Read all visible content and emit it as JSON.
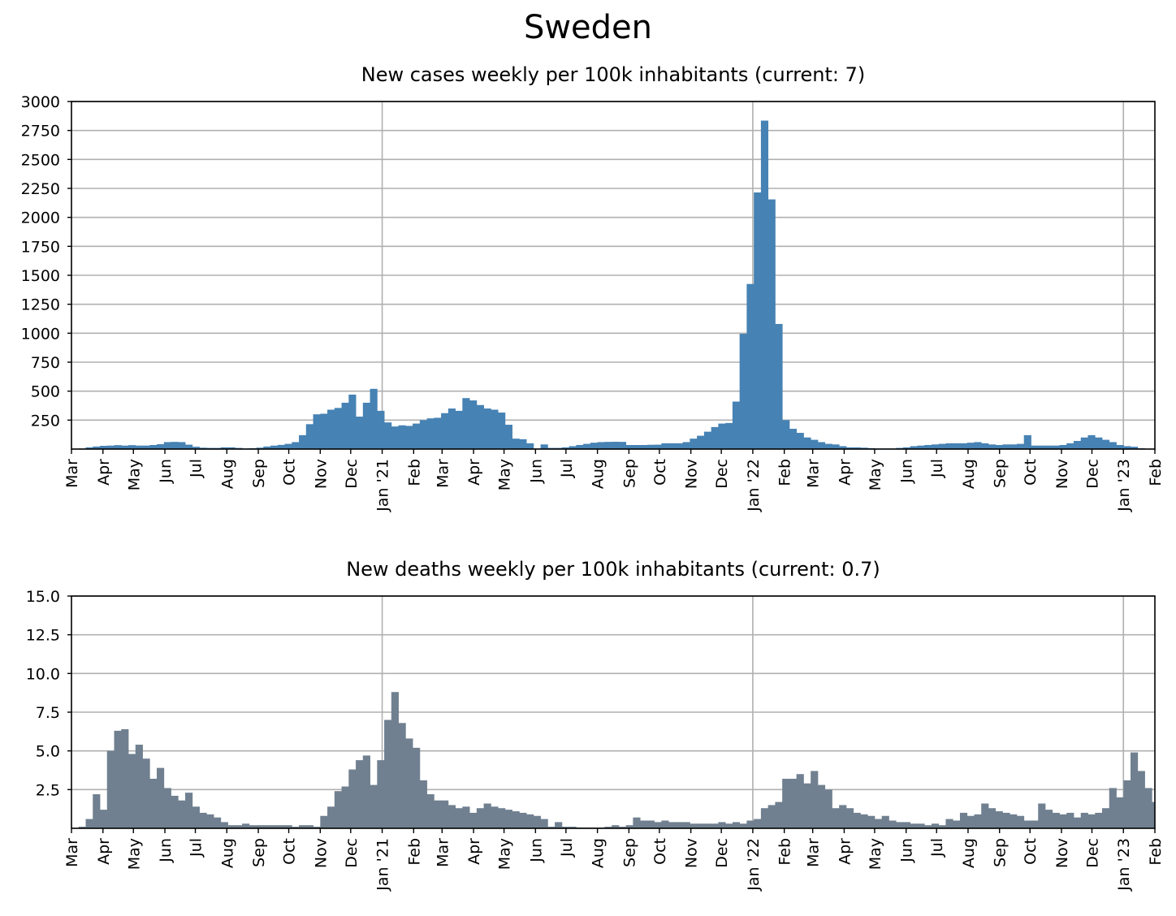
{
  "suptitle": "Sweden",
  "chart_data": [
    {
      "type": "bar",
      "title": "New cases weekly per 100k inhabitants (current: 7)",
      "xlabel": "",
      "ylabel": "",
      "ylim": [
        0,
        3000
      ],
      "yticks": [
        250,
        500,
        750,
        1000,
        1250,
        1500,
        1750,
        2000,
        2250,
        2500,
        2750,
        3000
      ],
      "xlim": [
        "2020-03-01",
        "2023-02-01"
      ],
      "grid": true,
      "color": "#4682b4",
      "major_gridlines_x": [
        "2021-01-01",
        "2022-01-01",
        "2023-01-01"
      ],
      "x_tick_labels": [
        {
          "date": "2020-03-01",
          "label": "Mar"
        },
        {
          "date": "2020-04-01",
          "label": "Apr"
        },
        {
          "date": "2020-05-01",
          "label": "May"
        },
        {
          "date": "2020-06-01",
          "label": "Jun"
        },
        {
          "date": "2020-07-01",
          "label": "Jul"
        },
        {
          "date": "2020-08-01",
          "label": "Aug"
        },
        {
          "date": "2020-09-01",
          "label": "Sep"
        },
        {
          "date": "2020-10-01",
          "label": "Oct"
        },
        {
          "date": "2020-11-01",
          "label": "Nov"
        },
        {
          "date": "2020-12-01",
          "label": "Dec"
        },
        {
          "date": "2021-01-01",
          "label": "Jan '21"
        },
        {
          "date": "2021-02-01",
          "label": "Feb"
        },
        {
          "date": "2021-03-01",
          "label": "Mar"
        },
        {
          "date": "2021-04-01",
          "label": "Apr"
        },
        {
          "date": "2021-05-01",
          "label": "May"
        },
        {
          "date": "2021-06-01",
          "label": "Jun"
        },
        {
          "date": "2021-07-01",
          "label": "Jul"
        },
        {
          "date": "2021-08-01",
          "label": "Aug"
        },
        {
          "date": "2021-09-01",
          "label": "Sep"
        },
        {
          "date": "2021-10-01",
          "label": "Oct"
        },
        {
          "date": "2021-11-01",
          "label": "Nov"
        },
        {
          "date": "2021-12-01",
          "label": "Dec"
        },
        {
          "date": "2022-01-01",
          "label": "Jan '22"
        },
        {
          "date": "2022-02-01",
          "label": "Feb"
        },
        {
          "date": "2022-03-01",
          "label": "Mar"
        },
        {
          "date": "2022-04-01",
          "label": "Apr"
        },
        {
          "date": "2022-05-01",
          "label": "May"
        },
        {
          "date": "2022-06-01",
          "label": "Jun"
        },
        {
          "date": "2022-07-01",
          "label": "Jul"
        },
        {
          "date": "2022-08-01",
          "label": "Aug"
        },
        {
          "date": "2022-09-01",
          "label": "Sep"
        },
        {
          "date": "2022-10-01",
          "label": "Oct"
        },
        {
          "date": "2022-11-01",
          "label": "Nov"
        },
        {
          "date": "2022-12-01",
          "label": "Dec"
        },
        {
          "date": "2023-01-01",
          "label": "Jan '23"
        },
        {
          "date": "2023-02-01",
          "label": "Feb"
        }
      ],
      "x_start": "2020-03-01",
      "bin_days": 7,
      "values": [
        2,
        5,
        15,
        22,
        28,
        30,
        34,
        30,
        34,
        30,
        30,
        35,
        42,
        60,
        62,
        60,
        38,
        20,
        12,
        10,
        10,
        15,
        15,
        10,
        5,
        8,
        12,
        22,
        30,
        36,
        45,
        60,
        120,
        215,
        300,
        305,
        340,
        355,
        400,
        470,
        280,
        400,
        520,
        330,
        230,
        195,
        205,
        200,
        220,
        250,
        265,
        270,
        310,
        350,
        330,
        440,
        420,
        380,
        350,
        340,
        315,
        210,
        90,
        85,
        50,
        5,
        40,
        10,
        10,
        15,
        25,
        35,
        45,
        55,
        60,
        62,
        63,
        62,
        35,
        35,
        35,
        37,
        38,
        50,
        50,
        50,
        60,
        90,
        115,
        150,
        190,
        220,
        225,
        410,
        995,
        1425,
        2215,
        2835,
        2155,
        1080,
        250,
        175,
        140,
        100,
        80,
        60,
        45,
        40,
        25,
        15,
        15,
        12,
        8,
        5,
        5,
        5,
        10,
        15,
        25,
        30,
        35,
        40,
        45,
        50,
        50,
        50,
        55,
        60,
        50,
        40,
        35,
        40,
        40,
        45,
        120,
        30,
        30,
        30,
        30,
        35,
        50,
        70,
        100,
        120,
        100,
        80,
        60,
        35,
        25,
        20,
        7
      ]
    },
    {
      "type": "bar",
      "title": "New deaths weekly per 100k inhabitants (current: 0.7)",
      "xlabel": "",
      "ylabel": "",
      "ylim": [
        0,
        15
      ],
      "yticks": [
        2.5,
        5.0,
        7.5,
        10.0,
        12.5,
        15.0
      ],
      "ytick_labels": [
        "2.5",
        "5.0",
        "7.5",
        "10.0",
        "12.5",
        "15.0"
      ],
      "xlim": [
        "2020-03-01",
        "2023-02-01"
      ],
      "grid": true,
      "color": "#708090",
      "major_gridlines_x": [
        "2021-01-01",
        "2022-01-01",
        "2023-01-01"
      ],
      "x_tick_labels": [
        {
          "date": "2020-03-01",
          "label": "Mar"
        },
        {
          "date": "2020-04-01",
          "label": "Apr"
        },
        {
          "date": "2020-05-01",
          "label": "May"
        },
        {
          "date": "2020-06-01",
          "label": "Jun"
        },
        {
          "date": "2020-07-01",
          "label": "Jul"
        },
        {
          "date": "2020-08-01",
          "label": "Aug"
        },
        {
          "date": "2020-09-01",
          "label": "Sep"
        },
        {
          "date": "2020-10-01",
          "label": "Oct"
        },
        {
          "date": "2020-11-01",
          "label": "Nov"
        },
        {
          "date": "2020-12-01",
          "label": "Dec"
        },
        {
          "date": "2021-01-01",
          "label": "Jan '21"
        },
        {
          "date": "2021-02-01",
          "label": "Feb"
        },
        {
          "date": "2021-03-01",
          "label": "Mar"
        },
        {
          "date": "2021-04-01",
          "label": "Apr"
        },
        {
          "date": "2021-05-01",
          "label": "May"
        },
        {
          "date": "2021-06-01",
          "label": "Jun"
        },
        {
          "date": "2021-07-01",
          "label": "Jul"
        },
        {
          "date": "2021-08-01",
          "label": "Aug"
        },
        {
          "date": "2021-09-01",
          "label": "Sep"
        },
        {
          "date": "2021-10-01",
          "label": "Oct"
        },
        {
          "date": "2021-11-01",
          "label": "Nov"
        },
        {
          "date": "2021-12-01",
          "label": "Dec"
        },
        {
          "date": "2022-01-01",
          "label": "Jan '22"
        },
        {
          "date": "2022-02-01",
          "label": "Feb"
        },
        {
          "date": "2022-03-01",
          "label": "Mar"
        },
        {
          "date": "2022-04-01",
          "label": "Apr"
        },
        {
          "date": "2022-05-01",
          "label": "May"
        },
        {
          "date": "2022-06-01",
          "label": "Jun"
        },
        {
          "date": "2022-07-01",
          "label": "Jul"
        },
        {
          "date": "2022-08-01",
          "label": "Aug"
        },
        {
          "date": "2022-09-01",
          "label": "Sep"
        },
        {
          "date": "2022-10-01",
          "label": "Oct"
        },
        {
          "date": "2022-11-01",
          "label": "Nov"
        },
        {
          "date": "2022-12-01",
          "label": "Dec"
        },
        {
          "date": "2023-01-01",
          "label": "Jan '23"
        },
        {
          "date": "2023-02-01",
          "label": "Feb"
        }
      ],
      "x_start": "2020-03-01",
      "bin_days": 7,
      "values": [
        0,
        0.1,
        0.6,
        2.2,
        1.2,
        5.0,
        6.3,
        6.4,
        4.8,
        5.4,
        4.5,
        3.2,
        3.9,
        2.6,
        2.1,
        1.8,
        2.3,
        1.4,
        1.0,
        0.9,
        0.7,
        0.4,
        0.2,
        0.2,
        0.3,
        0.2,
        0.2,
        0.2,
        0.2,
        0.2,
        0.2,
        0.1,
        0.2,
        0.2,
        0.1,
        0.8,
        1.4,
        2.4,
        2.7,
        3.8,
        4.4,
        4.7,
        2.8,
        4.4,
        7.0,
        8.8,
        6.8,
        5.8,
        5.2,
        3.1,
        2.2,
        1.8,
        1.8,
        1.5,
        1.3,
        1.4,
        1.0,
        1.3,
        1.6,
        1.4,
        1.3,
        1.2,
        1.1,
        1.0,
        0.9,
        0.8,
        0.6,
        0.1,
        0.4,
        0.1,
        0.1,
        0.05,
        0.05,
        0.05,
        0.05,
        0.1,
        0.2,
        0.1,
        0.2,
        0.7,
        0.5,
        0.5,
        0.4,
        0.5,
        0.4,
        0.4,
        0.4,
        0.3,
        0.3,
        0.3,
        0.3,
        0.4,
        0.3,
        0.4,
        0.3,
        0.5,
        0.6,
        1.3,
        1.5,
        1.7,
        3.2,
        3.2,
        3.5,
        2.9,
        3.7,
        2.8,
        2.5,
        1.3,
        1.5,
        1.3,
        1.0,
        0.9,
        0.8,
        0.6,
        0.8,
        0.5,
        0.4,
        0.4,
        0.3,
        0.3,
        0.2,
        0.3,
        0.2,
        0.6,
        0.5,
        1.0,
        0.8,
        0.9,
        1.6,
        1.3,
        1.1,
        1.0,
        0.9,
        0.8,
        0.5,
        0.5,
        1.6,
        1.2,
        1.0,
        0.9,
        1.0,
        0.7,
        1.0,
        0.9,
        1.0,
        1.3,
        2.6,
        2.0,
        3.1,
        4.9,
        3.7,
        2.6,
        1.7,
        1.1,
        0.7
      ]
    }
  ]
}
